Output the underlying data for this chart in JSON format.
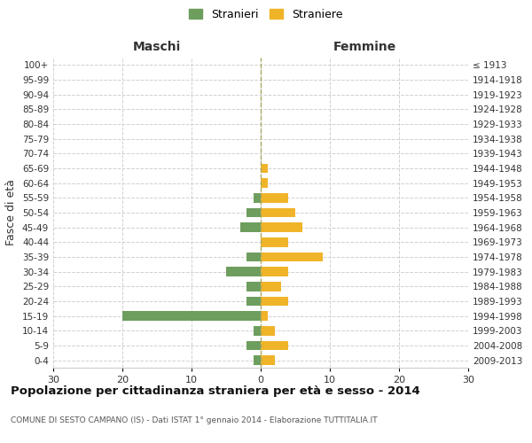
{
  "age_groups": [
    "100+",
    "95-99",
    "90-94",
    "85-89",
    "80-84",
    "75-79",
    "70-74",
    "65-69",
    "60-64",
    "55-59",
    "50-54",
    "45-49",
    "40-44",
    "35-39",
    "30-34",
    "25-29",
    "20-24",
    "15-19",
    "10-14",
    "5-9",
    "0-4"
  ],
  "birth_years": [
    "≤ 1913",
    "1914-1918",
    "1919-1923",
    "1924-1928",
    "1929-1933",
    "1934-1938",
    "1939-1943",
    "1944-1948",
    "1949-1953",
    "1954-1958",
    "1959-1963",
    "1964-1968",
    "1969-1973",
    "1974-1978",
    "1979-1983",
    "1984-1988",
    "1989-1993",
    "1994-1998",
    "1999-2003",
    "2004-2008",
    "2009-2013"
  ],
  "males": [
    0,
    0,
    0,
    0,
    0,
    0,
    0,
    0,
    0,
    1,
    2,
    3,
    0,
    2,
    5,
    2,
    2,
    20,
    1,
    2,
    1
  ],
  "females": [
    0,
    0,
    0,
    0,
    0,
    0,
    0,
    1,
    1,
    4,
    5,
    6,
    4,
    9,
    4,
    3,
    4,
    1,
    2,
    4,
    2
  ],
  "male_color": "#6e9e5e",
  "female_color": "#f0b429",
  "title": "Popolazione per cittadinanza straniera per età e sesso - 2014",
  "subtitle": "COMUNE DI SESTO CAMPANO (IS) - Dati ISTAT 1° gennaio 2014 - Elaborazione TUTTITALIA.IT",
  "label_left": "Maschi",
  "label_right": "Femmine",
  "ylabel_left": "Fasce di età",
  "legend_male": "Stranieri",
  "legend_female": "Straniere",
  "xlim": 30,
  "background_color": "#ffffff",
  "grid_color": "#d0d0d0",
  "dashed_line_color": "#aaa860"
}
